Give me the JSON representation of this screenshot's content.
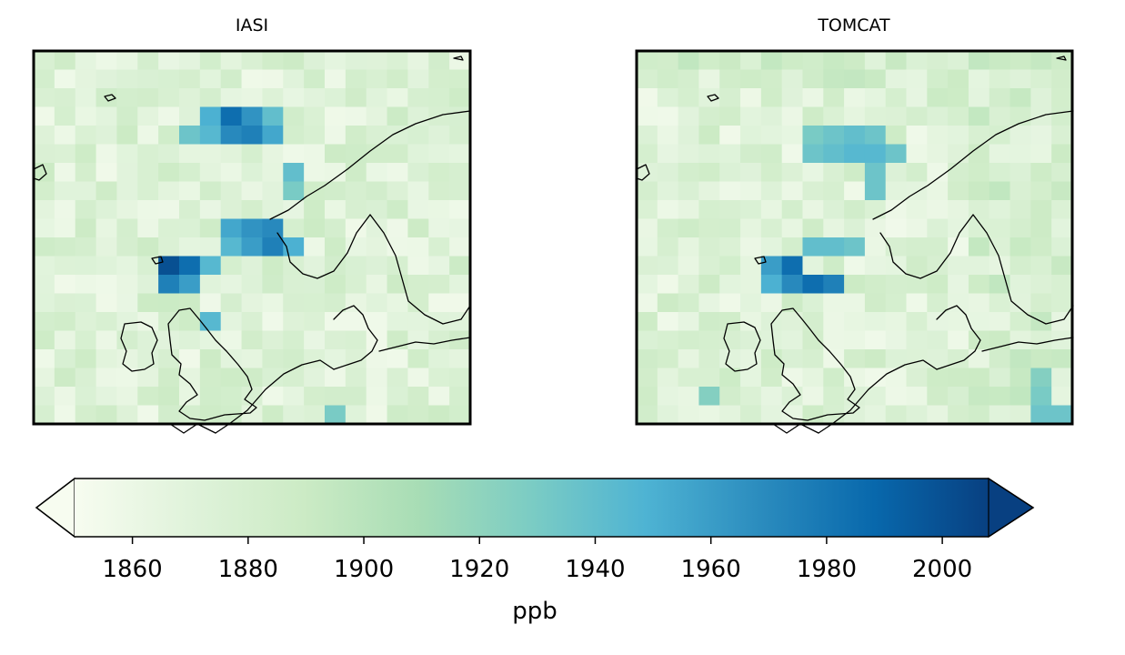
{
  "panels": [
    {
      "title": "IASI",
      "hotspots": [
        {
          "col": 9,
          "row": 3,
          "value": 1985
        },
        {
          "col": 9,
          "row": 4,
          "value": 1970
        },
        {
          "col": 8,
          "row": 3,
          "value": 1950
        },
        {
          "col": 10,
          "row": 3,
          "value": 1965
        },
        {
          "col": 10,
          "row": 4,
          "value": 1975
        },
        {
          "col": 11,
          "row": 4,
          "value": 1955
        },
        {
          "col": 8,
          "row": 4,
          "value": 1945
        },
        {
          "col": 7,
          "row": 4,
          "value": 1935
        },
        {
          "col": 11,
          "row": 3,
          "value": 1940
        },
        {
          "col": 12,
          "row": 6,
          "value": 1940
        },
        {
          "col": 12,
          "row": 7,
          "value": 1930
        },
        {
          "col": 9,
          "row": 9,
          "value": 1955
        },
        {
          "col": 10,
          "row": 9,
          "value": 1965
        },
        {
          "col": 11,
          "row": 9,
          "value": 1970
        },
        {
          "col": 11,
          "row": 10,
          "value": 1975
        },
        {
          "col": 10,
          "row": 10,
          "value": 1960
        },
        {
          "col": 12,
          "row": 10,
          "value": 1950
        },
        {
          "col": 9,
          "row": 10,
          "value": 1945
        },
        {
          "col": 6,
          "row": 11,
          "value": 2000
        },
        {
          "col": 7,
          "row": 11,
          "value": 1985
        },
        {
          "col": 6,
          "row": 12,
          "value": 1975
        },
        {
          "col": 7,
          "row": 12,
          "value": 1960
        },
        {
          "col": 8,
          "row": 11,
          "value": 1945
        },
        {
          "col": 8,
          "row": 14,
          "value": 1945
        },
        {
          "col": 14,
          "row": 19,
          "value": 1930
        }
      ]
    },
    {
      "title": "TOMCAT",
      "hotspots": [
        {
          "col": 8,
          "row": 4,
          "value": 1930
        },
        {
          "col": 9,
          "row": 4,
          "value": 1935
        },
        {
          "col": 10,
          "row": 4,
          "value": 1940
        },
        {
          "col": 11,
          "row": 4,
          "value": 1935
        },
        {
          "col": 8,
          "row": 5,
          "value": 1935
        },
        {
          "col": 9,
          "row": 5,
          "value": 1940
        },
        {
          "col": 10,
          "row": 5,
          "value": 1945
        },
        {
          "col": 11,
          "row": 5,
          "value": 1945
        },
        {
          "col": 12,
          "row": 5,
          "value": 1935
        },
        {
          "col": 11,
          "row": 6,
          "value": 1935
        },
        {
          "col": 11,
          "row": 7,
          "value": 1935
        },
        {
          "col": 8,
          "row": 10,
          "value": 1940
        },
        {
          "col": 9,
          "row": 10,
          "value": 1940
        },
        {
          "col": 10,
          "row": 10,
          "value": 1935
        },
        {
          "col": 6,
          "row": 11,
          "value": 1960
        },
        {
          "col": 7,
          "row": 11,
          "value": 1985
        },
        {
          "col": 6,
          "row": 12,
          "value": 1950
        },
        {
          "col": 7,
          "row": 12,
          "value": 1970
        },
        {
          "col": 8,
          "row": 12,
          "value": 1985
        },
        {
          "col": 9,
          "row": 12,
          "value": 1975
        },
        {
          "col": 3,
          "row": 18,
          "value": 1925
        },
        {
          "col": 19,
          "row": 17,
          "value": 1925
        },
        {
          "col": 19,
          "row": 18,
          "value": 1930
        },
        {
          "col": 19,
          "row": 19,
          "value": 1935
        },
        {
          "col": 20,
          "row": 19,
          "value": 1935
        },
        {
          "col": 19,
          "row": 20,
          "value": 1940
        },
        {
          "col": 20,
          "row": 20,
          "value": 1940
        }
      ]
    }
  ],
  "colorbar": {
    "ticks": [
      "1860",
      "1880",
      "1900",
      "1920",
      "1940",
      "1960",
      "1980",
      "2000"
    ],
    "min": 1850,
    "max": 2008,
    "label": "ppb",
    "colors": [
      "#f7fcf0",
      "#e0f3db",
      "#ccebc5",
      "#a8ddb5",
      "#7bccc4",
      "#4eb3d3",
      "#2b8cbe",
      "#0868ac",
      "#084081"
    ]
  }
}
